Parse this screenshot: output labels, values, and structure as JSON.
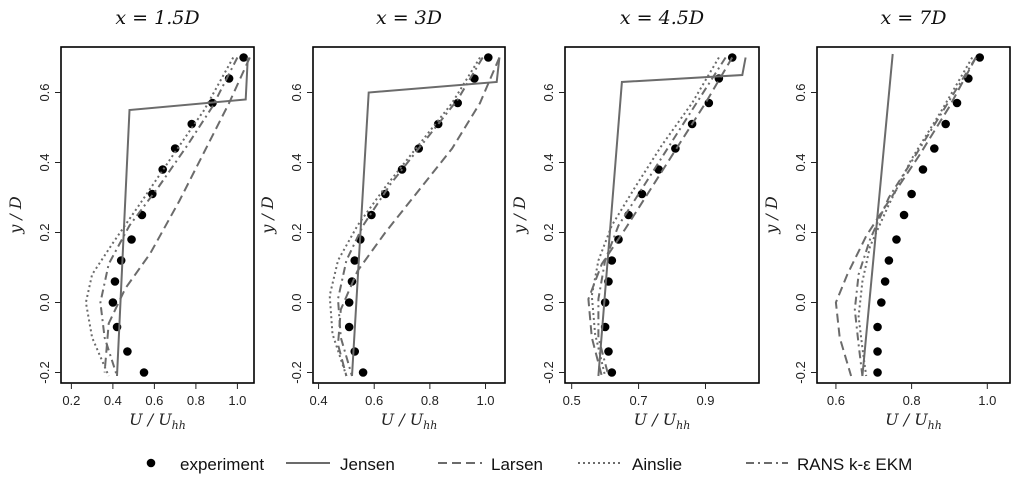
{
  "chart_data": [
    {
      "type": "line",
      "title": "x = 1.5D",
      "xlabel": "U / U_hh",
      "ylabel": "y / D",
      "xlim": [
        0.15,
        1.08
      ],
      "ylim": [
        -0.23,
        0.73
      ],
      "xticks": [
        0.2,
        0.4,
        0.6,
        0.8,
        1.0
      ],
      "xtick_labels": [
        "0.2",
        "0.4",
        "0.6",
        "0.8",
        "1.0"
      ],
      "yticks": [
        -0.2,
        0.0,
        0.2,
        0.4,
        0.6
      ],
      "ytick_labels": [
        "-0.2",
        "0.0",
        "0.2",
        "0.4",
        "0.6"
      ],
      "series": [
        {
          "name": "experiment",
          "style": "points",
          "points": [
            [
              1.03,
              0.7
            ],
            [
              0.96,
              0.64
            ],
            [
              0.88,
              0.57
            ],
            [
              0.78,
              0.51
            ],
            [
              0.7,
              0.44
            ],
            [
              0.64,
              0.38
            ],
            [
              0.59,
              0.31
            ],
            [
              0.54,
              0.25
            ],
            [
              0.49,
              0.18
            ],
            [
              0.44,
              0.12
            ],
            [
              0.41,
              0.06
            ],
            [
              0.4,
              0.0
            ],
            [
              0.42,
              -0.07
            ],
            [
              0.47,
              -0.14
            ],
            [
              0.55,
              -0.2
            ]
          ]
        },
        {
          "name": "Jensen",
          "style": "solid",
          "points": [
            [
              0.42,
              -0.21
            ],
            [
              0.48,
              0.55
            ],
            [
              1.04,
              0.58
            ],
            [
              1.05,
              0.7
            ]
          ]
        },
        {
          "name": "Larsen",
          "style": "dashed",
          "points": [
            [
              1.06,
              0.7
            ],
            [
              0.96,
              0.57
            ],
            [
              0.84,
              0.43
            ],
            [
              0.72,
              0.29
            ],
            [
              0.58,
              0.14
            ],
            [
              0.46,
              0.04
            ],
            [
              0.38,
              -0.06
            ],
            [
              0.36,
              -0.2
            ]
          ]
        },
        {
          "name": "Ainslie",
          "style": "dotted",
          "points": [
            [
              0.98,
              0.7
            ],
            [
              0.84,
              0.55
            ],
            [
              0.7,
              0.43
            ],
            [
              0.54,
              0.29
            ],
            [
              0.4,
              0.17
            ],
            [
              0.3,
              0.08
            ],
            [
              0.27,
              0.0
            ],
            [
              0.3,
              -0.1
            ],
            [
              0.38,
              -0.21
            ]
          ]
        },
        {
          "name": "RANS k-ε EKM",
          "style": "dashdot",
          "points": [
            [
              1.0,
              0.7
            ],
            [
              0.88,
              0.56
            ],
            [
              0.76,
              0.45
            ],
            [
              0.62,
              0.33
            ],
            [
              0.48,
              0.22
            ],
            [
              0.38,
              0.11
            ],
            [
              0.34,
              0.0
            ],
            [
              0.36,
              -0.1
            ],
            [
              0.42,
              -0.21
            ]
          ]
        }
      ]
    },
    {
      "type": "line",
      "title": "x = 3D",
      "xlabel": "U / U_hh",
      "ylabel": "y / D",
      "xlim": [
        0.38,
        1.07
      ],
      "ylim": [
        -0.23,
        0.73
      ],
      "xticks": [
        0.4,
        0.6,
        0.8,
        1.0
      ],
      "xtick_labels": [
        "0.4",
        "0.6",
        "0.8",
        "1.0"
      ],
      "yticks": [
        -0.2,
        0.0,
        0.2,
        0.4,
        0.6
      ],
      "ytick_labels": [
        "-0.2",
        "0.0",
        "0.2",
        "0.4",
        "0.6"
      ],
      "series": [
        {
          "name": "experiment",
          "style": "points",
          "points": [
            [
              1.01,
              0.7
            ],
            [
              0.96,
              0.64
            ],
            [
              0.9,
              0.57
            ],
            [
              0.83,
              0.51
            ],
            [
              0.76,
              0.44
            ],
            [
              0.7,
              0.38
            ],
            [
              0.64,
              0.31
            ],
            [
              0.59,
              0.25
            ],
            [
              0.55,
              0.18
            ],
            [
              0.53,
              0.12
            ],
            [
              0.52,
              0.06
            ],
            [
              0.51,
              0.0
            ],
            [
              0.51,
              -0.07
            ],
            [
              0.53,
              -0.14
            ],
            [
              0.56,
              -0.2
            ]
          ]
        },
        {
          "name": "Jensen",
          "style": "solid",
          "points": [
            [
              0.52,
              -0.21
            ],
            [
              0.58,
              0.6
            ],
            [
              1.04,
              0.63
            ],
            [
              1.05,
              0.7
            ]
          ]
        },
        {
          "name": "Larsen",
          "style": "dashed",
          "points": [
            [
              1.05,
              0.7
            ],
            [
              0.98,
              0.57
            ],
            [
              0.88,
              0.44
            ],
            [
              0.76,
              0.32
            ],
            [
              0.64,
              0.2
            ],
            [
              0.54,
              0.09
            ],
            [
              0.48,
              -0.02
            ],
            [
              0.47,
              -0.12
            ],
            [
              0.5,
              -0.21
            ]
          ]
        },
        {
          "name": "Ainslie",
          "style": "dotted",
          "points": [
            [
              0.98,
              0.7
            ],
            [
              0.88,
              0.57
            ],
            [
              0.76,
              0.45
            ],
            [
              0.64,
              0.33
            ],
            [
              0.54,
              0.22
            ],
            [
              0.47,
              0.12
            ],
            [
              0.44,
              0.02
            ],
            [
              0.45,
              -0.09
            ],
            [
              0.5,
              -0.21
            ]
          ]
        },
        {
          "name": "RANS k-ε EKM",
          "style": "dashdot",
          "points": [
            [
              0.99,
              0.7
            ],
            [
              0.9,
              0.58
            ],
            [
              0.78,
              0.46
            ],
            [
              0.66,
              0.34
            ],
            [
              0.56,
              0.22
            ],
            [
              0.5,
              0.12
            ],
            [
              0.47,
              0.01
            ],
            [
              0.48,
              -0.1
            ],
            [
              0.52,
              -0.21
            ]
          ]
        }
      ]
    },
    {
      "type": "line",
      "title": "x = 4.5D",
      "xlabel": "U / U_hh",
      "ylabel": "y / D",
      "xlim": [
        0.48,
        1.06
      ],
      "ylim": [
        -0.23,
        0.73
      ],
      "xticks": [
        0.5,
        0.7,
        0.9
      ],
      "xtick_labels": [
        "0.5",
        "0.7",
        "0.9"
      ],
      "yticks": [
        -0.2,
        0.0,
        0.2,
        0.4,
        0.6
      ],
      "ytick_labels": [
        "-0.2",
        "0.0",
        "0.2",
        "0.4",
        "0.6"
      ],
      "series": [
        {
          "name": "experiment",
          "style": "points",
          "points": [
            [
              0.98,
              0.7
            ],
            [
              0.94,
              0.64
            ],
            [
              0.91,
              0.57
            ],
            [
              0.86,
              0.51
            ],
            [
              0.81,
              0.44
            ],
            [
              0.76,
              0.38
            ],
            [
              0.71,
              0.31
            ],
            [
              0.67,
              0.25
            ],
            [
              0.64,
              0.18
            ],
            [
              0.62,
              0.12
            ],
            [
              0.61,
              0.06
            ],
            [
              0.6,
              0.0
            ],
            [
              0.6,
              -0.07
            ],
            [
              0.61,
              -0.14
            ],
            [
              0.62,
              -0.2
            ]
          ]
        },
        {
          "name": "Jensen",
          "style": "solid",
          "points": [
            [
              0.58,
              -0.21
            ],
            [
              0.65,
              0.63
            ],
            [
              1.01,
              0.65
            ],
            [
              1.02,
              0.7
            ]
          ]
        },
        {
          "name": "Larsen",
          "style": "dashed",
          "points": [
            [
              0.98,
              0.7
            ],
            [
              0.9,
              0.57
            ],
            [
              0.82,
              0.45
            ],
            [
              0.74,
              0.33
            ],
            [
              0.66,
              0.21
            ],
            [
              0.59,
              0.11
            ],
            [
              0.55,
              0.01
            ],
            [
              0.56,
              -0.1
            ],
            [
              0.59,
              -0.21
            ]
          ]
        },
        {
          "name": "Ainslie",
          "style": "dotted",
          "points": [
            [
              0.94,
              0.7
            ],
            [
              0.86,
              0.57
            ],
            [
              0.77,
              0.45
            ],
            [
              0.69,
              0.33
            ],
            [
              0.62,
              0.22
            ],
            [
              0.58,
              0.12
            ],
            [
              0.56,
              0.02
            ],
            [
              0.57,
              -0.09
            ],
            [
              0.6,
              -0.21
            ]
          ]
        },
        {
          "name": "RANS k-ε EKM",
          "style": "dashdot",
          "points": [
            [
              0.96,
              0.7
            ],
            [
              0.88,
              0.58
            ],
            [
              0.8,
              0.46
            ],
            [
              0.72,
              0.34
            ],
            [
              0.64,
              0.22
            ],
            [
              0.6,
              0.12
            ],
            [
              0.58,
              0.01
            ],
            [
              0.58,
              -0.1
            ],
            [
              0.61,
              -0.21
            ]
          ]
        }
      ]
    },
    {
      "type": "line",
      "title": "x = 7D",
      "xlabel": "U / U_hh",
      "ylabel": "y / D",
      "xlim": [
        0.55,
        1.06
      ],
      "ylim": [
        -0.23,
        0.73
      ],
      "xticks": [
        0.6,
        0.8,
        1.0
      ],
      "xtick_labels": [
        "0.6",
        "0.8",
        "1.0"
      ],
      "yticks": [
        -0.2,
        0.0,
        0.2,
        0.4,
        0.6
      ],
      "ytick_labels": [
        "-0.2",
        "0.0",
        "0.2",
        "0.4",
        "0.6"
      ],
      "series": [
        {
          "name": "experiment",
          "style": "points",
          "points": [
            [
              0.98,
              0.7
            ],
            [
              0.95,
              0.64
            ],
            [
              0.92,
              0.57
            ],
            [
              0.89,
              0.51
            ],
            [
              0.86,
              0.44
            ],
            [
              0.83,
              0.38
            ],
            [
              0.8,
              0.31
            ],
            [
              0.78,
              0.25
            ],
            [
              0.76,
              0.18
            ],
            [
              0.74,
              0.12
            ],
            [
              0.73,
              0.06
            ],
            [
              0.72,
              0.0
            ],
            [
              0.71,
              -0.07
            ],
            [
              0.71,
              -0.14
            ],
            [
              0.71,
              -0.2
            ]
          ]
        },
        {
          "name": "Jensen",
          "style": "solid",
          "points": [
            [
              0.67,
              -0.21
            ],
            [
              0.75,
              0.71
            ]
          ]
        },
        {
          "name": "Larsen",
          "style": "dashed",
          "points": [
            [
              0.97,
              0.7
            ],
            [
              0.9,
              0.56
            ],
            [
              0.82,
              0.42
            ],
            [
              0.74,
              0.29
            ],
            [
              0.68,
              0.19
            ],
            [
              0.63,
              0.08
            ],
            [
              0.6,
              0.0
            ],
            [
              0.61,
              -0.1
            ],
            [
              0.64,
              -0.21
            ]
          ]
        },
        {
          "name": "Ainslie",
          "style": "dotted",
          "points": [
            [
              0.96,
              0.7
            ],
            [
              0.88,
              0.55
            ],
            [
              0.8,
              0.41
            ],
            [
              0.74,
              0.28
            ],
            [
              0.69,
              0.16
            ],
            [
              0.67,
              0.06
            ],
            [
              0.66,
              -0.04
            ],
            [
              0.67,
              -0.13
            ],
            [
              0.68,
              -0.21
            ]
          ]
        },
        {
          "name": "RANS k-ε EKM",
          "style": "dashdot",
          "points": [
            [
              0.97,
              0.7
            ],
            [
              0.89,
              0.56
            ],
            [
              0.81,
              0.42
            ],
            [
              0.74,
              0.3
            ],
            [
              0.69,
              0.18
            ],
            [
              0.66,
              0.08
            ],
            [
              0.65,
              -0.02
            ],
            [
              0.66,
              -0.12
            ],
            [
              0.67,
              -0.21
            ]
          ]
        }
      ]
    }
  ],
  "legend": [
    {
      "label": "experiment",
      "style": "points"
    },
    {
      "label": "Jensen",
      "style": "solid"
    },
    {
      "label": "Larsen",
      "style": "dashed"
    },
    {
      "label": "Ainslie",
      "style": "dotted"
    },
    {
      "label": "RANS k-ε EKM",
      "style": "dashdot"
    }
  ],
  "colors": {
    "line": "#6b6b6b",
    "points": "#000000",
    "frame": "#000000"
  }
}
